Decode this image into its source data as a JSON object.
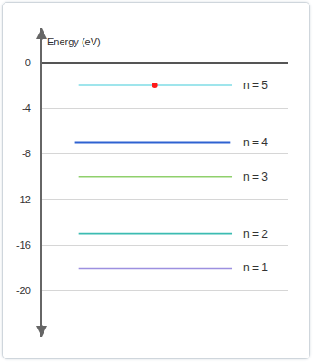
{
  "chart_data": {
    "type": "line",
    "y_label": "Energy (eV)",
    "ylim": [
      -24,
      3
    ],
    "yticks": [
      0,
      -4,
      -8,
      -12,
      -16,
      -20
    ],
    "grid": true,
    "tick_labels": "y",
    "series": [
      {
        "name": "n = 5",
        "values": [
          -2
        ],
        "color": "#7fdde6",
        "marker": "dot"
      },
      {
        "name": "n = 4",
        "values": [
          -7
        ],
        "color": "#2f62d1"
      },
      {
        "name": "n = 3",
        "values": [
          -10
        ],
        "color": "#8fd06c"
      },
      {
        "name": "n = 2",
        "values": [
          -15
        ],
        "color": "#3cbcb2"
      },
      {
        "name": "n = 1",
        "values": [
          -18
        ],
        "color": "#9d90e0"
      }
    ]
  }
}
